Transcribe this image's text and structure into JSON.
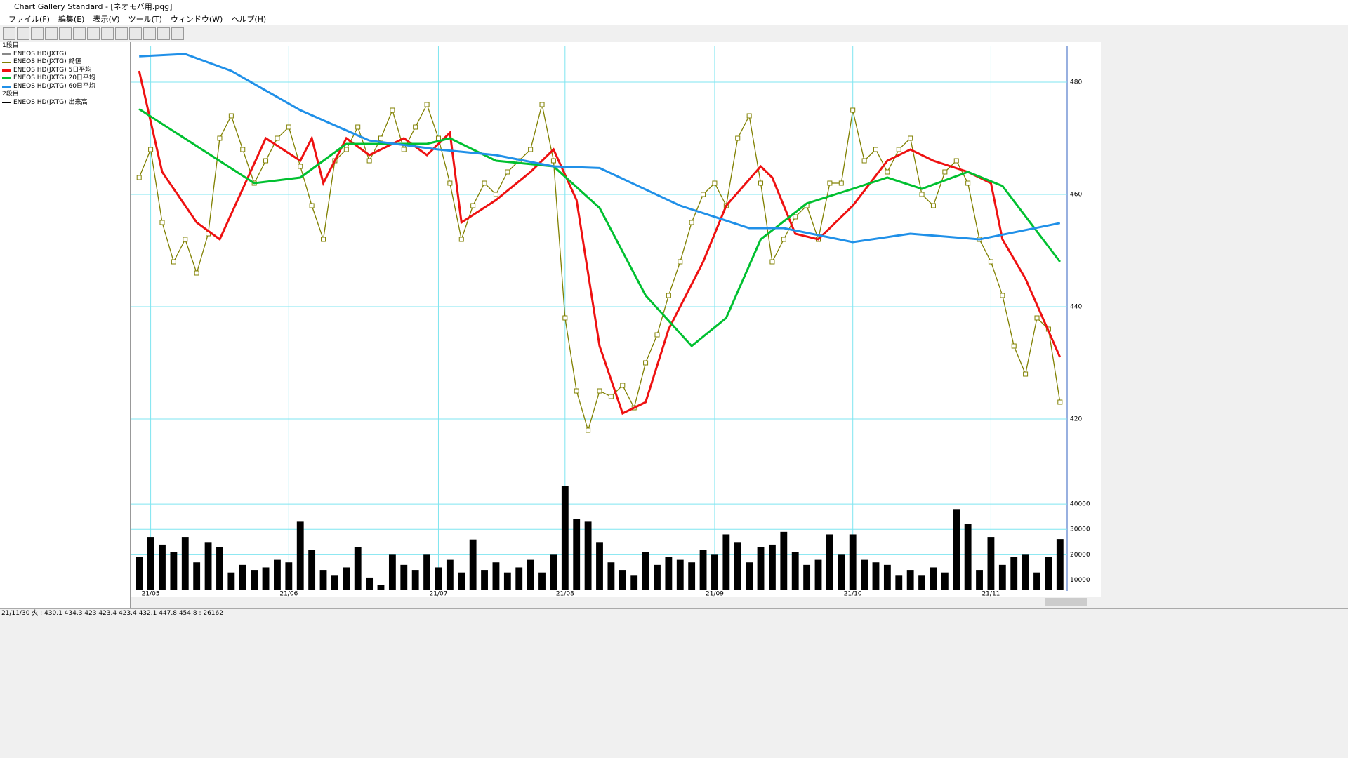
{
  "window": {
    "title": "Chart Gallery Standard - [ネオモバ用.pqg]",
    "menu": [
      "ファイル(F)",
      "編集(E)",
      "表示(V)",
      "ツール(T)",
      "ウィンドウ(W)",
      "ヘルプ(H)"
    ]
  },
  "legend_panel": {
    "pane1": "1段目",
    "candle": "ENEOS HD(JXTG)",
    "pane2": "2段目"
  },
  "status_bar": "21/11/30 火 : 430.1 434.3 423 423.4  423.4 432.1 447.8 454.8 : 26162",
  "chart_data": {
    "type": "line",
    "x": [
      0,
      1,
      2,
      3,
      4,
      5,
      6,
      7,
      8,
      9,
      10,
      11,
      12,
      13,
      14,
      15,
      16,
      17,
      18,
      19,
      20,
      21,
      22,
      23,
      24,
      25,
      26,
      27,
      28,
      29,
      30,
      31,
      32,
      33,
      34,
      35,
      36,
      37,
      38,
      39,
      40,
      41,
      42,
      43,
      44,
      45,
      46,
      47,
      48,
      49,
      50,
      51,
      52,
      53,
      54,
      55,
      56,
      57,
      58,
      59,
      60,
      61,
      62,
      63,
      64,
      65,
      66,
      67,
      68,
      69,
      70,
      71,
      72,
      73,
      74,
      75,
      76,
      77,
      78,
      79,
      80
    ],
    "xlim": [
      -0.5,
      80.5
    ],
    "xticks": [
      {
        "value": 1,
        "label": "21/05"
      },
      {
        "value": 13,
        "label": "21/06"
      },
      {
        "value": 26,
        "label": "21/07"
      },
      {
        "value": 37,
        "label": "21/08"
      },
      {
        "value": 50,
        "label": "21/09"
      },
      {
        "value": 62,
        "label": "21/10"
      },
      {
        "value": 74,
        "label": "21/11"
      }
    ],
    "ylim": [
      408,
      486.5
    ],
    "yticks": [
      420,
      440,
      460,
      480
    ],
    "y2lim": [
      6000,
      45000
    ],
    "y2ticks": [
      10000,
      20000,
      30000,
      40000
    ],
    "grid": true,
    "series": [
      {
        "name": "ENEOS HD(JXTG) 終値",
        "color": "#808000",
        "values": [
          463,
          468,
          455,
          448,
          452,
          446,
          453,
          470,
          474,
          468,
          462,
          466,
          470,
          472,
          465,
          458,
          452,
          466,
          468,
          472,
          466,
          470,
          475,
          468,
          472,
          476,
          470,
          462,
          452,
          458,
          462,
          460,
          464,
          466,
          468,
          476,
          466,
          438,
          425,
          418,
          425,
          424,
          426,
          422,
          430,
          435,
          442,
          448,
          455,
          460,
          462,
          458,
          470,
          474,
          462,
          448,
          452,
          456,
          458,
          452,
          462,
          462,
          475,
          466,
          468,
          464,
          468,
          470,
          460,
          458,
          464,
          466,
          462,
          452,
          448,
          442,
          433,
          428,
          438,
          436,
          423
        ]
      },
      {
        "name": "ENEOS HD(JXTG) 5日平均",
        "color": "#ee1111",
        "x": [
          0,
          2,
          5,
          7,
          11,
          14,
          15,
          16,
          18,
          20,
          23,
          25,
          27,
          28,
          31,
          34,
          36,
          38,
          40,
          42,
          44,
          46,
          49,
          51,
          54,
          55,
          57,
          59,
          62,
          65,
          67,
          69,
          72,
          74,
          75,
          77,
          80
        ],
        "values": [
          482,
          464,
          455,
          452,
          470,
          466,
          470,
          462,
          470,
          467,
          470,
          467,
          471,
          455,
          459,
          464,
          468,
          459,
          433,
          421,
          423,
          436,
          448,
          458,
          465,
          463,
          453,
          452,
          458,
          466,
          468,
          466,
          464,
          462,
          452,
          445,
          431
        ]
      },
      {
        "name": "ENEOS HD(JXTG) 20日平均",
        "color": "#00c030",
        "x": [
          0,
          10,
          14,
          18,
          25,
          27,
          31,
          36,
          40,
          44,
          48,
          51,
          54,
          58,
          62,
          65,
          68,
          72,
          75,
          80
        ],
        "values": [
          475.2,
          462,
          463,
          469,
          469,
          470,
          466,
          465,
          457.6,
          442,
          433,
          438,
          452,
          458.4,
          461,
          463,
          461,
          464,
          461.5,
          448
        ]
      },
      {
        "name": "ENEOS HD(JXTG) 60日平均",
        "color": "#2090e8",
        "x": [
          0,
          4,
          8,
          14,
          20,
          26,
          31,
          36,
          40,
          47,
          53,
          56,
          62,
          67,
          73,
          80
        ],
        "values": [
          484.6,
          485,
          482,
          475,
          469.6,
          468,
          467,
          465,
          464.7,
          458,
          454,
          454,
          451.5,
          453,
          452,
          454.9
        ]
      },
      {
        "name": "ENEOS HD(JXTG) 出来高",
        "color": "#000000",
        "axis": "y2",
        "values": [
          19000,
          27000,
          24000,
          21000,
          27000,
          17000,
          25000,
          23000,
          13000,
          16000,
          14000,
          15000,
          18000,
          17000,
          33000,
          22000,
          14000,
          12000,
          15000,
          23000,
          11000,
          8000,
          20000,
          16000,
          14000,
          20000,
          15000,
          18000,
          13000,
          26000,
          14000,
          17000,
          13000,
          15000,
          18000,
          13000,
          20000,
          47000,
          34000,
          33000,
          25000,
          17000,
          14000,
          12000,
          21000,
          16000,
          19000,
          18000,
          17000,
          22000,
          20000,
          28000,
          25000,
          17000,
          23000,
          24000,
          29000,
          21000,
          16000,
          18000,
          28000,
          20000,
          28000,
          18000,
          17000,
          16000,
          12000,
          14000,
          12000,
          15000,
          13000,
          38000,
          32000,
          14000,
          27000,
          16000,
          19000,
          20000,
          13000,
          19000,
          26162
        ]
      }
    ]
  }
}
